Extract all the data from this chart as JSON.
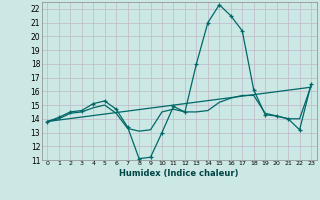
{
  "title": "",
  "xlabel": "Humidex (Indice chaleur)",
  "bg_color": "#cce8e4",
  "grid_color": "#c0b8c8",
  "line_color": "#006868",
  "xlim": [
    -0.5,
    23.5
  ],
  "ylim": [
    11,
    22.5
  ],
  "yticks": [
    11,
    12,
    13,
    14,
    15,
    16,
    17,
    18,
    19,
    20,
    21,
    22
  ],
  "xticks": [
    0,
    1,
    2,
    3,
    4,
    5,
    6,
    7,
    8,
    9,
    10,
    11,
    12,
    13,
    14,
    15,
    16,
    17,
    18,
    19,
    20,
    21,
    22,
    23
  ],
  "line1_x": [
    0,
    1,
    2,
    3,
    4,
    5,
    6,
    7,
    8,
    9,
    10,
    11,
    12,
    13,
    14,
    15,
    16,
    17,
    18,
    19,
    20,
    21,
    22,
    23
  ],
  "line1_y": [
    13.8,
    14.1,
    14.5,
    14.6,
    15.1,
    15.3,
    14.7,
    13.4,
    11.1,
    11.2,
    13.0,
    14.9,
    14.5,
    18.0,
    21.0,
    22.3,
    21.5,
    20.4,
    16.1,
    14.3,
    14.2,
    14.0,
    13.2,
    16.5
  ],
  "line2_x": [
    0,
    1,
    2,
    3,
    4,
    5,
    6,
    7,
    8,
    9,
    10,
    11,
    12,
    13,
    14,
    15,
    16,
    17,
    18,
    19,
    20,
    21,
    22,
    23
  ],
  "line2_y": [
    13.8,
    14.0,
    14.4,
    14.5,
    14.8,
    15.0,
    14.4,
    13.3,
    13.1,
    13.2,
    14.5,
    14.7,
    14.5,
    14.5,
    14.6,
    15.2,
    15.5,
    15.7,
    15.7,
    14.4,
    14.2,
    14.0,
    14.0,
    16.4
  ],
  "line3_x": [
    0,
    23
  ],
  "line3_y": [
    13.8,
    16.3
  ]
}
